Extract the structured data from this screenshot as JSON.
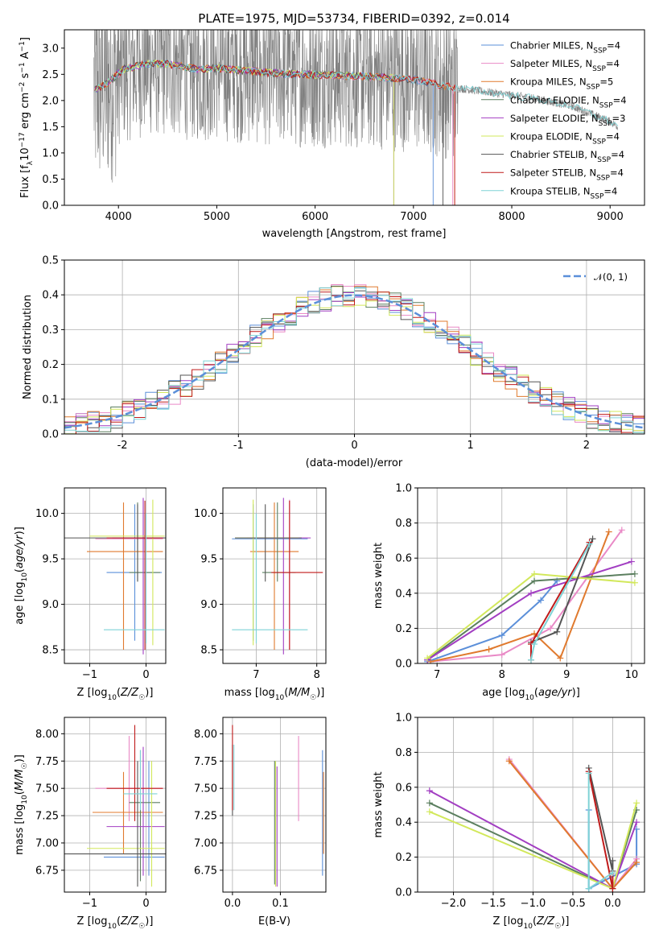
{
  "figure_title": "PLATE=1975, MJD=53734, FIBERID=0392, z=0.014",
  "series_colors": [
    "#5b8fd9",
    "#e989c6",
    "#e07a2e",
    "#5b7f5f",
    "#a23ec2",
    "#d2e85b",
    "#555555",
    "#c01a1a",
    "#7fd3d6"
  ],
  "chart_data": [
    {
      "type": "line",
      "xlabel": "wavelength [Angstrom, rest frame]",
      "ylabel": "Flux [f_λ 10^-17 erg cm^-2 s^-1 A^-1]",
      "xlim": [
        3450,
        9350
      ],
      "ylim": [
        0,
        3.35
      ],
      "xticks": [
        4000,
        5000,
        6000,
        7000,
        8000,
        9000
      ],
      "yticks": [
        0,
        0.5,
        1.0,
        1.5,
        2.0,
        2.5,
        3.0
      ],
      "ytick_labels": [
        "0.0",
        "0.5",
        "1.0",
        "1.5",
        "2.0",
        "2.5",
        "3.0"
      ],
      "grid": false,
      "legend_position": "upper right",
      "legend": [
        "Chabrier MILES, N_SSP=4",
        "Salpeter MILES, N_SSP=4",
        "Kroupa MILES, N_SSP=5",
        "Chabrier ELODIE, N_SSP=4",
        "Salpeter ELODIE, N_SSP=3",
        "Kroupa ELODIE, N_SSP=4",
        "Chabrier STELIB, N_SSP=4",
        "Salpeter STELIB, N_SSP=4",
        "Kroupa STELIB, N_SSP=4"
      ],
      "data_color": "#808080",
      "data_range": [
        3750,
        9080
      ],
      "continuum": {
        "x": [
          3750,
          3900,
          4050,
          4300,
          4500,
          4800,
          5000,
          5400,
          5800,
          6200,
          6600,
          7000,
          7400,
          7800,
          8200,
          8600,
          9000,
          9080
        ],
        "y": [
          2.2,
          2.35,
          2.6,
          2.7,
          2.7,
          2.6,
          2.62,
          2.55,
          2.5,
          2.48,
          2.45,
          2.4,
          2.25,
          2.15,
          2.05,
          1.9,
          1.6,
          1.5
        ]
      }
    },
    {
      "type": "line",
      "xlabel": "(data-model)/error",
      "ylabel": "Normed distribution",
      "xlim": [
        -2.5,
        2.5
      ],
      "ylim": [
        0,
        0.5
      ],
      "xticks": [
        -2,
        -1,
        0,
        1,
        2
      ],
      "yticks": [
        0,
        0.1,
        0.2,
        0.3,
        0.4,
        0.5
      ],
      "ytick_labels": [
        "0.0",
        "0.1",
        "0.2",
        "0.3",
        "0.4",
        "0.5"
      ],
      "grid": true,
      "legend_position": "upper right",
      "legend": [
        "N(0,1)"
      ],
      "bin_width": 0.1
    },
    {
      "type": "scatter",
      "xlabel": "Z [log10(Z/Z☉)]",
      "ylabel": "age [log10(age/yr)]",
      "xlim": [
        -1.45,
        0.35
      ],
      "ylim": [
        8.35,
        10.28
      ],
      "xticks": [
        -1,
        0
      ],
      "xtick_labels": [
        "−1",
        "0"
      ],
      "yticks": [
        8.5,
        9.0,
        9.5,
        10.0
      ],
      "ytick_labels": [
        "8.5",
        "9.0",
        "9.5",
        "10.0"
      ],
      "grid": true,
      "series": [
        {
          "z": -0.2,
          "y": 9.35,
          "zerr": [
            -0.7,
            0.28
          ],
          "yerr": [
            8.6,
            10.1
          ]
        },
        {
          "z": -0.05,
          "y": 9.72,
          "zerr": [
            -0.9,
            0.3
          ],
          "yerr": [
            8.5,
            10.15
          ]
        },
        {
          "z": -0.4,
          "y": 9.58,
          "zerr": [
            -1.05,
            0.3
          ],
          "yerr": [
            8.5,
            10.12
          ]
        },
        {
          "z": -0.15,
          "y": 9.35,
          "zerr": [
            -0.3,
            0.25
          ],
          "yerr": [
            9.25,
            10.12
          ]
        },
        {
          "z": -0.05,
          "y": 9.73,
          "zerr": [
            -0.6,
            0.33
          ],
          "yerr": [
            8.45,
            10.17
          ]
        },
        {
          "z": 0.12,
          "y": 9.75,
          "zerr": [
            -1.0,
            0.33
          ],
          "yerr": [
            8.55,
            10.15
          ]
        },
        {
          "z": -0.15,
          "y": 9.73,
          "zerr": [
            -1.45,
            0.35
          ],
          "yerr": [
            9.25,
            10.1
          ]
        },
        {
          "z": -0.02,
          "y": 9.73,
          "zerr": [
            -0.7,
            0.3
          ],
          "yerr": [
            8.5,
            10.14
          ]
        },
        {
          "z": 0.0,
          "y": 8.72,
          "zerr": [
            -0.75,
            0.33
          ],
          "yerr": [
            8.57,
            10.0
          ]
        }
      ]
    },
    {
      "type": "scatter",
      "xlabel": "mass [log10(M/M☉)]",
      "ylabel": "",
      "xlim": [
        6.45,
        8.15
      ],
      "ylim": [
        8.35,
        10.28
      ],
      "xticks": [
        7,
        8
      ],
      "yticks": [
        8.5,
        9.0,
        9.5,
        10.0
      ],
      "ytick_labels": [
        "8.5",
        "9.0",
        "9.5",
        "10.0"
      ],
      "grid": true,
      "series": [
        {
          "x": 6.95,
          "y": 9.72,
          "xerr": [
            6.6,
            7.85
          ],
          "yerr": [
            8.6,
            10.1
          ]
        },
        {
          "x": 7.55,
          "y": 9.73,
          "xerr": [
            6.85,
            7.85
          ],
          "yerr": [
            8.5,
            10.15
          ]
        },
        {
          "x": 7.3,
          "y": 9.58,
          "xerr": [
            6.9,
            7.7
          ],
          "yerr": [
            8.5,
            10.12
          ]
        },
        {
          "x": 7.35,
          "y": 9.35,
          "xerr": [
            7.1,
            7.65
          ],
          "yerr": [
            9.25,
            10.12
          ]
        },
        {
          "x": 7.45,
          "y": 9.73,
          "xerr": [
            7.0,
            7.9
          ],
          "yerr": [
            8.45,
            10.17
          ]
        },
        {
          "x": 6.95,
          "y": 9.73,
          "xerr": [
            6.65,
            7.7
          ],
          "yerr": [
            8.55,
            10.15
          ]
        },
        {
          "x": 7.15,
          "y": 9.73,
          "xerr": [
            6.65,
            7.75
          ],
          "yerr": [
            9.25,
            10.1
          ]
        },
        {
          "x": 7.55,
          "y": 9.35,
          "xerr": [
            7.25,
            8.1
          ],
          "yerr": [
            8.5,
            10.14
          ]
        },
        {
          "x": 7.0,
          "y": 8.72,
          "xerr": [
            6.6,
            7.85
          ],
          "yerr": [
            8.57,
            10.0
          ]
        }
      ]
    },
    {
      "type": "line",
      "xlabel": "age [log10(age/yr)]",
      "ylabel": "mass weight",
      "xlim": [
        6.7,
        10.2
      ],
      "ylim": [
        0,
        1.0
      ],
      "xticks": [
        7,
        8,
        9,
        10
      ],
      "yticks": [
        0,
        0.2,
        0.4,
        0.6,
        0.8,
        1.0
      ],
      "ytick_labels": [
        "0.0",
        "0.2",
        "0.4",
        "0.6",
        "0.8",
        "1.0"
      ],
      "grid": true,
      "series": [
        {
          "x": [
            6.85,
            8.0,
            8.6,
            8.85
          ],
          "y": [
            0.01,
            0.16,
            0.36,
            0.47
          ]
        },
        {
          "x": [
            6.9,
            8.0,
            8.75,
            9.85
          ],
          "y": [
            0.01,
            0.05,
            0.2,
            0.76
          ]
        },
        {
          "x": [
            6.9,
            7.8,
            8.5,
            8.9,
            9.65
          ],
          "y": [
            0.01,
            0.08,
            0.17,
            0.03,
            0.75
          ]
        },
        {
          "x": [
            6.85,
            8.5,
            10.05
          ],
          "y": [
            0.02,
            0.47,
            0.51
          ]
        },
        {
          "x": [
            6.85,
            8.45,
            10.0
          ],
          "y": [
            0.02,
            0.4,
            0.58
          ]
        },
        {
          "x": [
            6.85,
            8.5,
            10.05
          ],
          "y": [
            0.03,
            0.51,
            0.46
          ]
        },
        {
          "x": [
            8.45,
            8.85,
            9.4
          ],
          "y": [
            0.12,
            0.18,
            0.71
          ]
        },
        {
          "x": [
            8.45,
            8.45,
            9.35
          ],
          "y": [
            0.02,
            0.11,
            0.69
          ]
        },
        {
          "x": [
            8.45,
            8.5,
            9.35
          ],
          "y": [
            0.02,
            0.11,
            0.68
          ]
        }
      ]
    },
    {
      "type": "scatter",
      "xlabel": "Z [log10(Z/Z☉)]",
      "ylabel": "mass [log10(M/M☉)]",
      "xlim": [
        -1.45,
        0.35
      ],
      "ylim": [
        6.55,
        8.15
      ],
      "xticks": [
        -1,
        0
      ],
      "xtick_labels": [
        "−1",
        "0"
      ],
      "yticks": [
        6.75,
        7.0,
        7.25,
        7.5,
        7.75,
        8.0
      ],
      "ytick_labels": [
        "6.75",
        "7.00",
        "7.25",
        "7.50",
        "7.75",
        "8.00"
      ],
      "grid": true,
      "series": [
        {
          "z": 0.05,
          "y": 6.87,
          "zerr": [
            -0.75,
            0.33
          ],
          "yerr": [
            6.7,
            7.75
          ]
        },
        {
          "z": -0.3,
          "y": 7.5,
          "zerr": [
            -0.9,
            0.3
          ],
          "yerr": [
            7.2,
            7.98
          ]
        },
        {
          "z": -0.4,
          "y": 7.28,
          "zerr": [
            -0.95,
            0.3
          ],
          "yerr": [
            6.9,
            7.65
          ]
        },
        {
          "z": -0.1,
          "y": 7.37,
          "zerr": [
            -0.3,
            0.25
          ],
          "yerr": [
            6.65,
            7.85
          ]
        },
        {
          "z": -0.05,
          "y": 7.15,
          "zerr": [
            -0.7,
            0.33
          ],
          "yerr": [
            6.7,
            7.88
          ]
        },
        {
          "z": 0.1,
          "y": 6.95,
          "zerr": [
            -1.05,
            0.33
          ],
          "yerr": [
            6.6,
            7.75
          ]
        },
        {
          "z": -0.15,
          "y": 6.9,
          "zerr": [
            -1.45,
            0.35
          ],
          "yerr": [
            6.6,
            7.75
          ]
        },
        {
          "z": -0.2,
          "y": 7.5,
          "zerr": [
            -0.7,
            0.3
          ],
          "yerr": [
            7.2,
            8.08
          ]
        },
        {
          "z": -0.1,
          "y": 7.45,
          "zerr": [
            -0.4,
            0.2
          ],
          "yerr": [
            7.3,
            7.85
          ]
        }
      ]
    },
    {
      "type": "scatter",
      "xlabel": "E(B-V)",
      "ylabel": "",
      "xlim": [
        -0.02,
        0.195
      ],
      "ylim": [
        6.55,
        8.15
      ],
      "xticks": [
        0.0,
        0.1
      ],
      "xtick_labels": [
        "0.0",
        "0.1"
      ],
      "yticks": [
        6.75,
        7.0,
        7.25,
        7.5,
        7.75,
        8.0
      ],
      "ytick_labels": [
        "6.75",
        "7.00",
        "7.25",
        "7.50",
        "7.75",
        "8.00"
      ],
      "grid": true,
      "series": [
        {
          "x": 0.188,
          "yerr": [
            6.7,
            7.85
          ]
        },
        {
          "x": 0.138,
          "yerr": [
            7.2,
            7.98
          ]
        },
        {
          "x": 0.19,
          "yerr": [
            6.9,
            7.65
          ]
        },
        {
          "x": 0.088,
          "yerr": [
            6.62,
            7.75
          ]
        },
        {
          "x": 0.093,
          "yerr": [
            6.6,
            7.7
          ]
        },
        {
          "x": 0.09,
          "yerr": [
            6.6,
            7.75
          ]
        },
        {
          "x": 0.0,
          "yerr": [
            7.25,
            7.9
          ]
        },
        {
          "x": 0.0,
          "yerr": [
            7.3,
            8.08
          ]
        },
        {
          "x": 0.003,
          "yerr": [
            7.3,
            7.9
          ]
        }
      ]
    },
    {
      "type": "line",
      "xlabel": "Z [log10(Z/Z☉)]",
      "ylabel": "mass weight",
      "xlim": [
        -2.45,
        0.4
      ],
      "ylim": [
        0,
        1.0
      ],
      "xticks": [
        -2.0,
        -1.5,
        -1.0,
        -0.5,
        0.0
      ],
      "xtick_labels": [
        "−2.0",
        "−1.5",
        "−1.0",
        "−0.5",
        "0.0"
      ],
      "yticks": [
        0,
        0.2,
        0.4,
        0.6,
        0.8,
        1.0
      ],
      "ytick_labels": [
        "0.0",
        "0.2",
        "0.4",
        "0.6",
        "0.8",
        "1.0"
      ],
      "grid": true,
      "series": [
        {
          "x": [
            -0.3,
            -0.3,
            0.3,
            0.3
          ],
          "y": [
            0.47,
            0.02,
            0.16,
            0.36
          ]
        },
        {
          "x": [
            -1.3,
            0.0,
            0.3
          ],
          "y": [
            0.76,
            0.02,
            0.19
          ]
        },
        {
          "x": [
            -1.3,
            0.0,
            0.3
          ],
          "y": [
            0.75,
            0.02,
            0.17
          ]
        },
        {
          "x": [
            -2.3,
            0.0,
            0.3
          ],
          "y": [
            0.51,
            0.02,
            0.47
          ]
        },
        {
          "x": [
            -2.3,
            0.0,
            0.3
          ],
          "y": [
            0.58,
            0.02,
            0.4
          ]
        },
        {
          "x": [
            -2.3,
            0.0,
            0.3
          ],
          "y": [
            0.46,
            0.02,
            0.51
          ]
        },
        {
          "x": [
            -0.3,
            0.0,
            0.0
          ],
          "y": [
            0.71,
            0.12,
            0.18
          ]
        },
        {
          "x": [
            -0.3,
            0.0,
            0.0
          ],
          "y": [
            0.69,
            0.02,
            0.11
          ]
        },
        {
          "x": [
            -0.3,
            -0.3,
            0.0
          ],
          "y": [
            0.68,
            0.02,
            0.11
          ]
        }
      ]
    }
  ]
}
